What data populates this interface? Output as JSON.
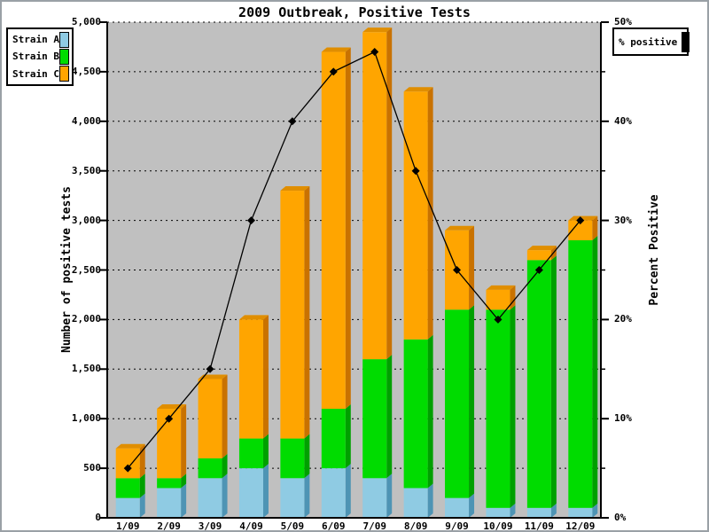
{
  "title": "2009 Outbreak, Positive Tests",
  "left_axis": {
    "title": "Number of positive tests",
    "tick_labels": [
      "5,000",
      "4,500",
      "4,000",
      "3,500",
      "3,000",
      "2,500",
      "2,000",
      "1,500",
      "1,000",
      "500",
      "0"
    ],
    "tick_values": [
      5000,
      4500,
      4000,
      3500,
      3000,
      2500,
      2000,
      1500,
      1000,
      500,
      0
    ]
  },
  "right_axis": {
    "title": "Percent Positive",
    "tick_labels": [
      "50%",
      "40%",
      "30%",
      "20%",
      "10%",
      "0%"
    ],
    "tick_values": [
      50,
      40,
      30,
      20,
      10,
      0
    ],
    "minor_tick_values": [
      45,
      35,
      25,
      15,
      5
    ]
  },
  "legend": {
    "items": [
      {
        "label": "Strain A"
      },
      {
        "label": "Strain B"
      },
      {
        "label": "Strain C"
      }
    ]
  },
  "line_legend": {
    "label": "% positive",
    "swatch_color": "#000000"
  },
  "colors": {
    "plot_background": "#c0c0c0",
    "grid": "#000000",
    "line": "#000000",
    "axis": "#000000"
  },
  "chart_data": {
    "type": "bar",
    "stacked": true,
    "title": "2009 Outbreak, Positive Tests",
    "ylabel": "Number of positive tests",
    "y2label": "Percent Positive",
    "ylim": [
      0,
      5000
    ],
    "y2lim": [
      0,
      50
    ],
    "grid": "horizontal dashed every 500 units (5%)",
    "legend_position": "top-left",
    "categories": [
      "1/09",
      "2/09",
      "3/09",
      "4/09",
      "5/09",
      "6/09",
      "7/09",
      "8/09",
      "9/09",
      "10/09",
      "11/09",
      "12/09"
    ],
    "series": [
      {
        "name": "Strain A",
        "color": "#8fcbe3",
        "shade_color": "#4e94b4",
        "top_color": "#6fb4d2",
        "values": [
          200,
          300,
          400,
          500,
          400,
          500,
          400,
          300,
          200,
          100,
          100,
          100
        ]
      },
      {
        "name": "Strain B",
        "color": "#00dc00",
        "shade_color": "#00a000",
        "top_color": "#00bc00",
        "values": [
          200,
          100,
          200,
          300,
          400,
          600,
          1200,
          1500,
          1900,
          2000,
          2500,
          2700
        ]
      },
      {
        "name": "Strain C",
        "color": "#ffa500",
        "shade_color": "#c97200",
        "top_color": "#e08e00",
        "values": [
          300,
          700,
          800,
          1200,
          2500,
          3600,
          3300,
          2500,
          800,
          200,
          100,
          200
        ]
      }
    ],
    "bar_totals": [
      700,
      1100,
      1400,
      2000,
      3300,
      4700,
      4900,
      4300,
      2900,
      2300,
      2700,
      3000
    ],
    "line_series": {
      "name": "% positive",
      "axis": "right",
      "color": "#000000",
      "marker": "diamond",
      "values": [
        5,
        10,
        15,
        30,
        40,
        45,
        47,
        35,
        25,
        20,
        25,
        30
      ]
    }
  }
}
